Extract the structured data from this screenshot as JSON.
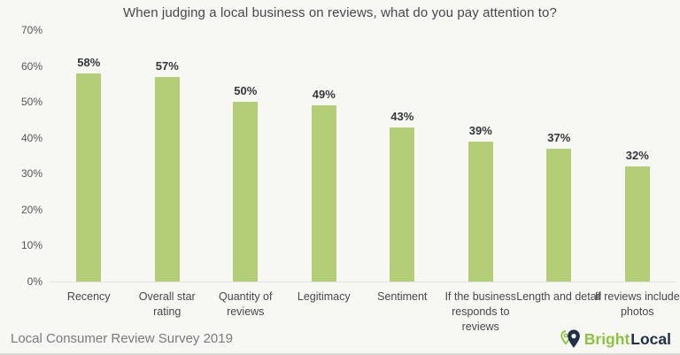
{
  "title": "When judging a local business on reviews, what do you pay attention to?",
  "chart_data": {
    "type": "bar",
    "title": "When judging a local business on reviews, what do you pay attention to?",
    "categories": [
      "Recency",
      "Overall star rating",
      "Quantity of reviews",
      "Legitimacy",
      "Sentiment",
      "If the business responds to reviews",
      "Length and detail",
      "If reviews include photos"
    ],
    "values": [
      58,
      57,
      50,
      49,
      43,
      39,
      37,
      32
    ],
    "value_labels": [
      "58%",
      "57%",
      "50%",
      "49%",
      "43%",
      "39%",
      "37%",
      "32%"
    ],
    "xlabel": "",
    "ylabel": "",
    "ylim": [
      0,
      70
    ],
    "ytick_step": 10,
    "ytick_labels": [
      "0%",
      "10%",
      "20%",
      "30%",
      "40%",
      "50%",
      "60%",
      "70%"
    ],
    "grid": false,
    "legend": false,
    "bar_color": "#b3ce77"
  },
  "footer": {
    "source": "Local Consumer Review Survey 2019",
    "logo": {
      "bright": "Bright",
      "local": "Local"
    }
  },
  "colors": {
    "background": "#f7f7f4",
    "bar": "#b3ce77",
    "logo_green": "#8dc343",
    "logo_navy": "#233049",
    "axis_line": "#e2e2de"
  }
}
